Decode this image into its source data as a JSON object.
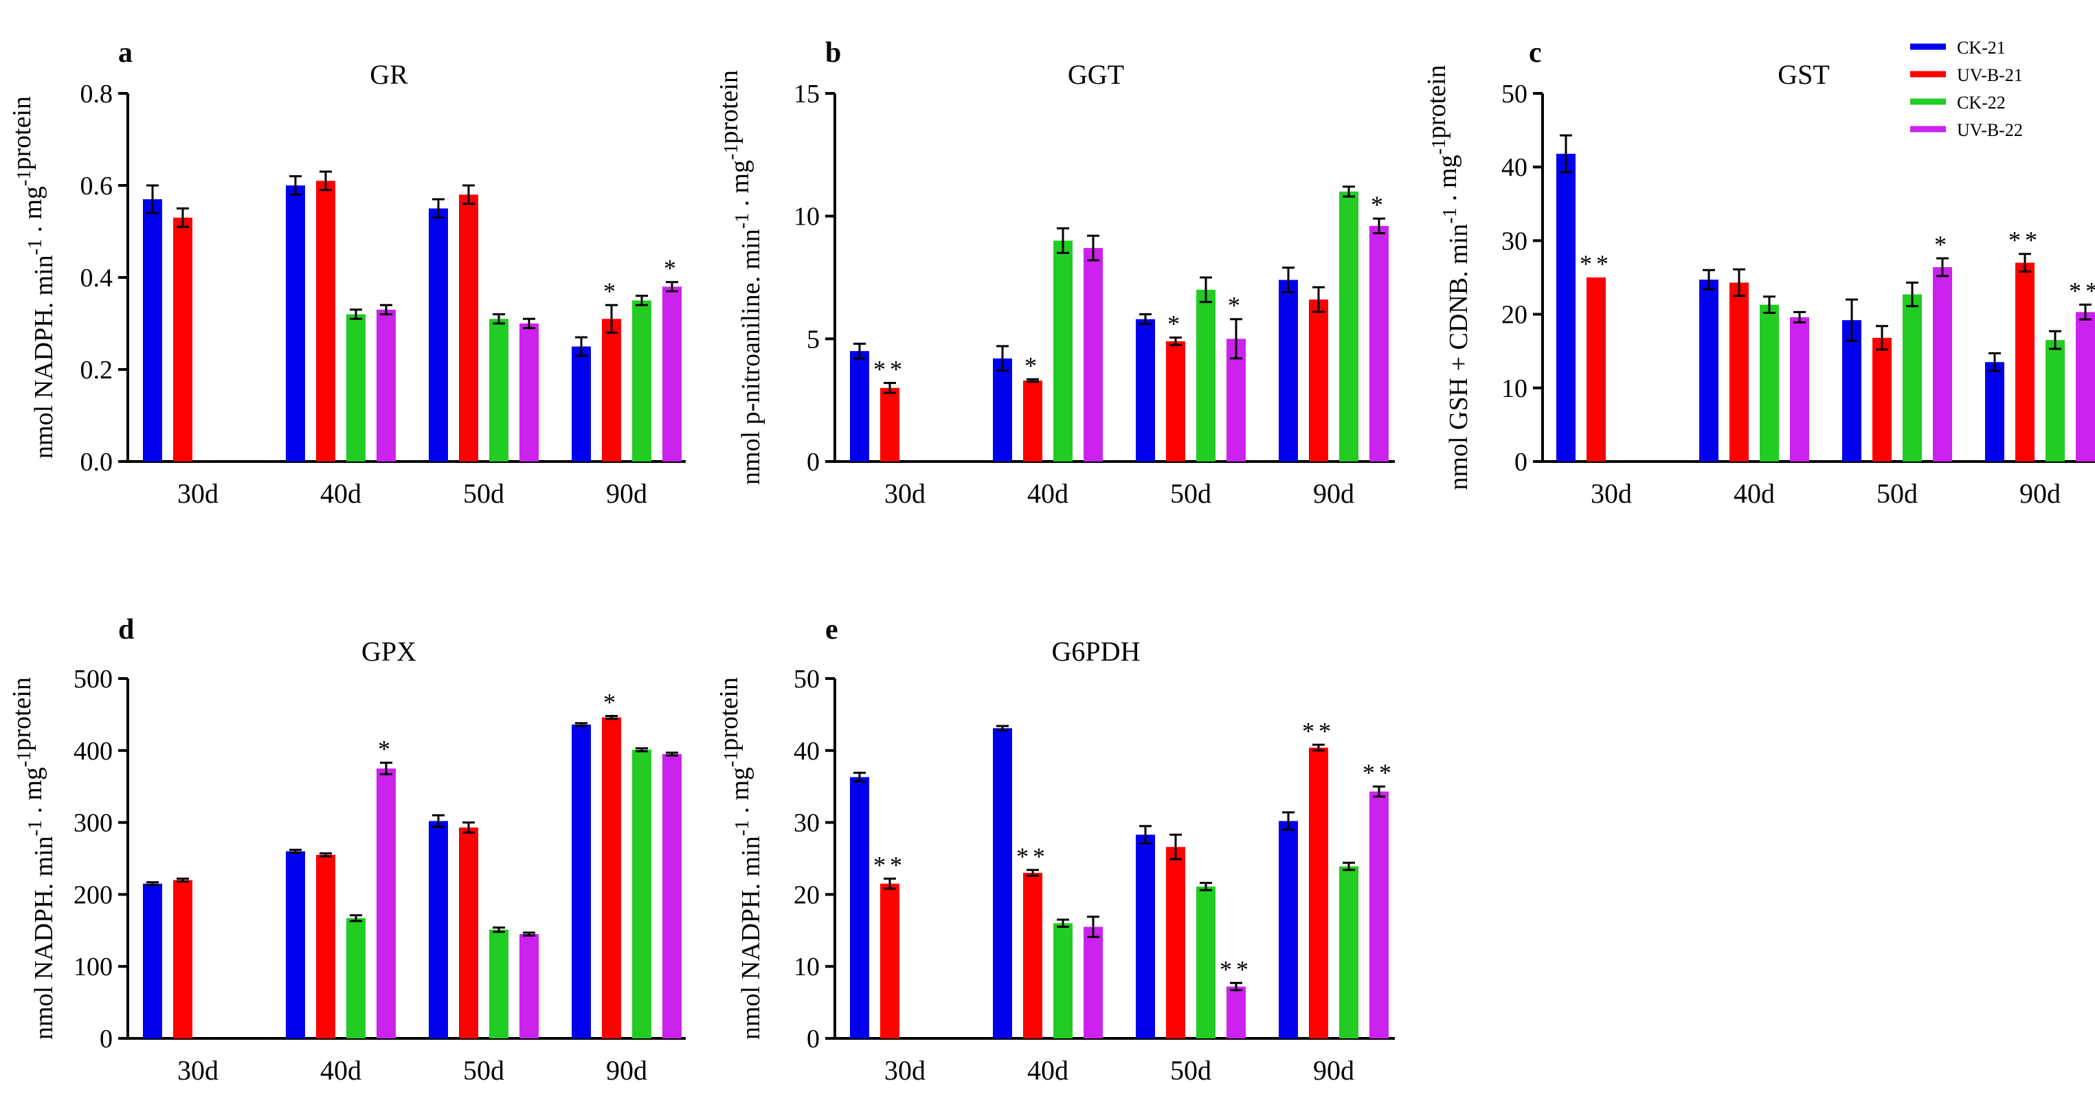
{
  "legend": [
    {
      "name": "CK-21",
      "color": "#0000ee"
    },
    {
      "name": "UV-B-21",
      "color": "#ff0000"
    },
    {
      "name": "CK-22",
      "color": "#22cc22"
    },
    {
      "name": "UV-B-22",
      "color": "#cc22ee"
    }
  ],
  "chart_data": [
    {
      "panel": "a",
      "type": "bar",
      "title": "GR",
      "ylabel": "nmol NADPH. min-1 . mg-1protein",
      "ylim": [
        0,
        0.8
      ],
      "yticks": [
        "0.0",
        "0.2",
        "0.4",
        "0.6",
        "0.8"
      ],
      "categories": [
        "30d",
        "40d",
        "50d",
        "90d"
      ],
      "series": [
        {
          "name": "CK-21",
          "values": [
            0.57,
            0.6,
            0.55,
            0.25
          ],
          "errors": [
            0.03,
            0.02,
            0.02,
            0.02
          ]
        },
        {
          "name": "UV-B-21",
          "values": [
            0.53,
            0.61,
            0.58,
            0.31
          ],
          "errors": [
            0.02,
            0.02,
            0.02,
            0.03
          ]
        },
        {
          "name": "CK-22",
          "values": [
            null,
            0.32,
            0.31,
            0.35
          ],
          "errors": [
            0,
            0.01,
            0.01,
            0.01
          ]
        },
        {
          "name": "UV-B-22",
          "values": [
            null,
            0.33,
            0.3,
            0.38
          ],
          "errors": [
            0,
            0.01,
            0.01,
            0.01
          ]
        }
      ],
      "significance": [
        [
          "",
          "",
          "",
          ""
        ],
        [
          "",
          "",
          "",
          "*"
        ],
        [
          "",
          "",
          "",
          ""
        ],
        [
          "",
          "",
          "",
          "*"
        ]
      ]
    },
    {
      "panel": "b",
      "type": "bar",
      "title": "GGT",
      "ylabel": "nmol p-nitroaniline. min-1 . mg-1protein",
      "ylim": [
        0,
        15
      ],
      "yticks": [
        "0",
        "5",
        "10",
        "15"
      ],
      "categories": [
        "30d",
        "40d",
        "50d",
        "90d"
      ],
      "series": [
        {
          "name": "CK-21",
          "values": [
            4.5,
            4.2,
            5.8,
            7.4
          ],
          "errors": [
            0.3,
            0.5,
            0.2,
            0.5
          ]
        },
        {
          "name": "UV-B-21",
          "values": [
            3.0,
            3.3,
            4.9,
            6.6
          ],
          "errors": [
            0.2,
            0.05,
            0.15,
            0.5
          ]
        },
        {
          "name": "CK-22",
          "values": [
            null,
            9.0,
            7.0,
            11.0
          ],
          "errors": [
            0,
            0.5,
            0.5,
            0.2
          ]
        },
        {
          "name": "UV-B-22",
          "values": [
            null,
            8.7,
            5.0,
            9.6
          ],
          "errors": [
            0,
            0.5,
            0.8,
            0.3
          ]
        }
      ],
      "significance": [
        [
          "",
          "",
          "",
          ""
        ],
        [
          "**",
          "*",
          "*",
          ""
        ],
        [
          "",
          "",
          "",
          ""
        ],
        [
          "",
          "",
          "*",
          "*"
        ]
      ]
    },
    {
      "panel": "c",
      "type": "bar",
      "title": "GST",
      "ylabel": "nmol GSH + CDNB. min-1 . mg-1protein",
      "ylim": [
        0,
        50
      ],
      "yticks": [
        "0",
        "10",
        "20",
        "30",
        "40",
        "50"
      ],
      "categories": [
        "30d",
        "40d",
        "50d",
        "90d"
      ],
      "series": [
        {
          "name": "CK-21",
          "values": [
            41.8,
            24.7,
            19.2,
            13.5
          ],
          "errors": [
            2.5,
            1.3,
            2.8,
            1.2
          ]
        },
        {
          "name": "UV-B-21",
          "values": [
            25.0,
            24.3,
            16.8,
            27.0
          ],
          "errors": [
            0,
            1.8,
            1.6,
            1.2
          ]
        },
        {
          "name": "CK-22",
          "values": [
            null,
            21.3,
            22.7,
            16.5
          ],
          "errors": [
            0,
            1.1,
            1.6,
            1.2
          ]
        },
        {
          "name": "UV-B-22",
          "values": [
            null,
            19.6,
            26.4,
            20.3
          ],
          "errors": [
            0,
            0.7,
            1.2,
            1.0
          ]
        }
      ],
      "significance": [
        [
          "",
          "",
          "",
          ""
        ],
        [
          "**",
          "",
          "",
          "**"
        ],
        [
          "",
          "",
          "",
          ""
        ],
        [
          "",
          "",
          "*",
          "**"
        ]
      ]
    },
    {
      "panel": "d",
      "type": "bar",
      "title": "GPX",
      "ylabel": "nmol NADPH. min-1 . mg-1protein",
      "ylim": [
        0,
        500
      ],
      "yticks": [
        "0",
        "100",
        "200",
        "300",
        "400",
        "500"
      ],
      "categories": [
        "30d",
        "40d",
        "50d",
        "90d"
      ],
      "series": [
        {
          "name": "CK-21",
          "values": [
            215,
            260,
            302,
            436
          ],
          "errors": [
            2,
            2,
            8,
            2
          ]
        },
        {
          "name": "UV-B-21",
          "values": [
            220,
            255,
            293,
            446
          ],
          "errors": [
            2,
            2,
            7,
            2
          ]
        },
        {
          "name": "CK-22",
          "values": [
            null,
            167,
            151,
            401
          ],
          "errors": [
            0,
            4,
            3,
            2
          ]
        },
        {
          "name": "UV-B-22",
          "values": [
            null,
            375,
            145,
            395
          ],
          "errors": [
            0,
            8,
            2,
            2
          ]
        }
      ],
      "significance": [
        [
          "",
          "",
          "",
          ""
        ],
        [
          "",
          "",
          "",
          "*"
        ],
        [
          "",
          "",
          "",
          ""
        ],
        [
          "",
          "*",
          "",
          ""
        ]
      ]
    },
    {
      "panel": "e",
      "type": "bar",
      "title": "G6PDH",
      "ylabel": "nmol NADPH. min-1 . mg-1protein",
      "ylim": [
        0,
        50
      ],
      "yticks": [
        "0",
        "10",
        "20",
        "30",
        "40",
        "50"
      ],
      "categories": [
        "30d",
        "40d",
        "50d",
        "90d"
      ],
      "series": [
        {
          "name": "CK-21",
          "values": [
            36.3,
            43.1,
            28.3,
            30.2
          ],
          "errors": [
            0.6,
            0.3,
            1.2,
            1.2
          ]
        },
        {
          "name": "UV-B-21",
          "values": [
            21.5,
            23.0,
            26.6,
            40.4
          ],
          "errors": [
            0.7,
            0.4,
            1.7,
            0.4
          ]
        },
        {
          "name": "CK-22",
          "values": [
            null,
            16.0,
            21.1,
            23.9
          ],
          "errors": [
            0,
            0.5,
            0.5,
            0.5
          ]
        },
        {
          "name": "UV-B-22",
          "values": [
            null,
            15.5,
            7.2,
            34.3
          ],
          "errors": [
            0,
            1.4,
            0.5,
            0.7
          ]
        }
      ],
      "significance": [
        [
          "",
          "",
          "",
          ""
        ],
        [
          "**",
          "**",
          "",
          "**"
        ],
        [
          "",
          "",
          "",
          ""
        ],
        [
          "",
          "",
          "**",
          "**"
        ]
      ]
    }
  ]
}
